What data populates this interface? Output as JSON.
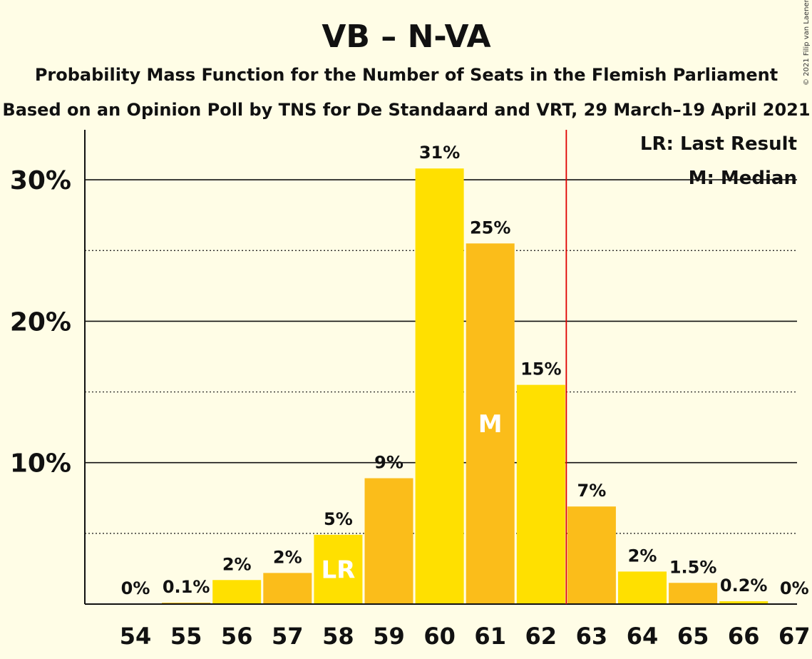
{
  "chart_data": {
    "type": "bar",
    "title": "VB – N-VA",
    "subtitle_1": "Probability Mass Function for the Number of Seats in the Flemish Parliament",
    "subtitle_2": "Based on an Opinion Poll by TNS for De Standaard and VRT, 29 March–19 April 2021",
    "copyright": "© 2021 Filip van Laenen",
    "categories": [
      "54",
      "55",
      "56",
      "57",
      "58",
      "59",
      "60",
      "61",
      "62",
      "63",
      "64",
      "65",
      "66",
      "67"
    ],
    "values": [
      0,
      0.1,
      1.7,
      2.2,
      4.9,
      8.9,
      30.8,
      25.5,
      15.5,
      6.9,
      2.3,
      1.5,
      0.2,
      0
    ],
    "data_labels": [
      "0%",
      "0.1%",
      "2%",
      "2%",
      "5%",
      "9%",
      "31%",
      "25%",
      "15%",
      "7%",
      "2%",
      "1.5%",
      "0.2%",
      "0%"
    ],
    "colors": [
      "#ffe000",
      "#fbbd1a",
      "#ffe000",
      "#fbbd1a",
      "#ffe000",
      "#fbbd1a",
      "#ffe000",
      "#fbbd1a",
      "#ffe000",
      "#fbbd1a",
      "#ffe000",
      "#fbbd1a",
      "#ffe000",
      "#fbbd1a"
    ],
    "inbar_labels": [
      {
        "category": "58",
        "text": "LR"
      },
      {
        "category": "61",
        "text": "M"
      }
    ],
    "yticks": [
      {
        "value": 10,
        "label": "10%"
      },
      {
        "value": 20,
        "label": "20%"
      },
      {
        "value": 30,
        "label": "30%"
      }
    ],
    "minor_gridlines": [
      5,
      15,
      25
    ],
    "ylim": [
      0,
      33.5
    ],
    "majority_line_after": "62",
    "majority_line_color": "#e00000",
    "legend": [
      "LR: Last Result",
      "M: Median"
    ],
    "legend_position": "top-right",
    "grid": true
  }
}
